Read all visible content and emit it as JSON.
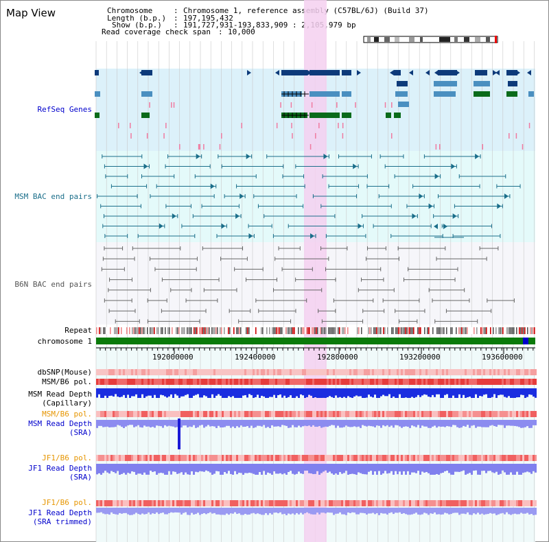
{
  "title": "Map View",
  "info": {
    "chromosome_label": "Chromosome",
    "chromosome_value": "Chromosome 1, reference assembly (C57BL/6J) (Build 37)",
    "length_label": "Length (b.p.)",
    "length_value": "197,195,432",
    "show_label": "Show (b.p.)",
    "show_value": "191,727,931-193,833,909 : 2,105,979 bp",
    "coverage_label": "Read coverage check span",
    "coverage_value": "10,000"
  },
  "tracks": {
    "refseq": "RefSeq Genes",
    "msm_bac": "MSM BAC end pairs",
    "b6n_bac": "B6N BAC end pairs",
    "repeat": "Repeat",
    "chromosome": "chromosome 1",
    "dbsnp": "dbSNP(Mouse)",
    "msm_b6_pol_1": "MSM/B6 pol.",
    "msm_read_depth_cap_1": "MSM Read Depth",
    "msm_read_depth_cap_2": "(Capillary)",
    "msm_b6_pol_2": "MSM/B6 pol.",
    "msm_read_depth_sra_1": "MSM Read Depth",
    "msm_read_depth_sra_2": "(SRA)",
    "jf1_b6_pol_1": "JF1/B6 pol.",
    "jf1_read_depth_sra_1": "JF1 Read Depth",
    "jf1_read_depth_sra_2": "(SRA)",
    "jf1_b6_pol_2": "JF1/B6 pol.",
    "jf1_read_depth_trim_1": "JF1 Read Depth",
    "jf1_read_depth_trim_2": "(SRA trimmed)"
  },
  "axis": {
    "ticks": [
      "192000000",
      "192400000",
      "192800000",
      "193200000",
      "193600000"
    ]
  },
  "colors": {
    "refseq_blue": "#0d3a7a",
    "refseq_mid": "#4a8fc0",
    "refseq_green": "#0a6b1a",
    "refseq_pink": "#f07aa0",
    "bac_teal": "#1a6e8a",
    "b6n_gray": "#666666",
    "highlight": "#f5d0f0",
    "label_blue": "#0000cc",
    "label_teal": "#1a6e8a",
    "label_orange": "#e69500",
    "chrom_green": "#0a7a0a"
  }
}
